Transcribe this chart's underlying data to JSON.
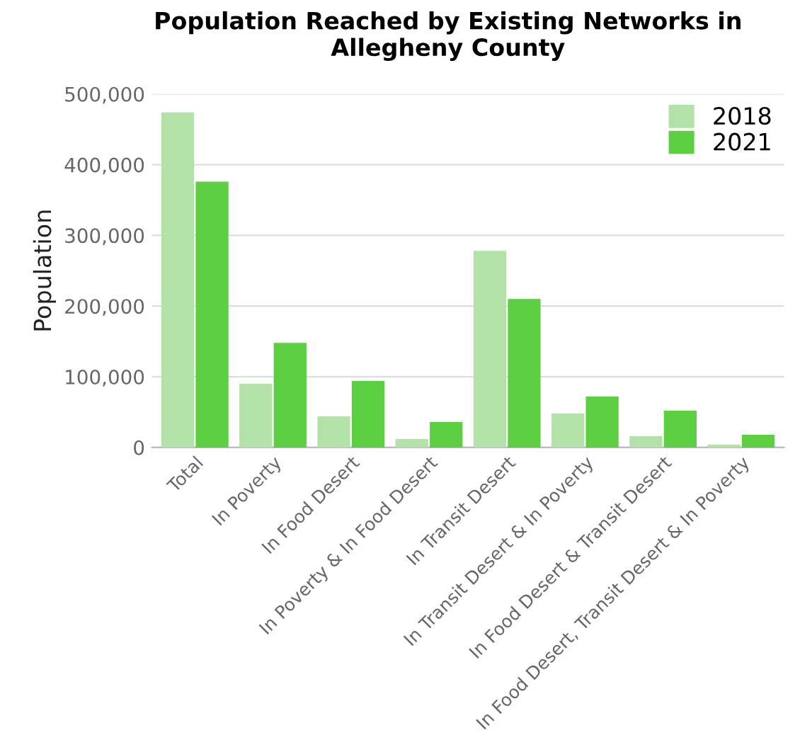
{
  "chart_data": {
    "type": "bar",
    "title": "Population Reached by Existing Networks in Allegheny County",
    "ylabel": "Population",
    "categories": [
      "Total",
      "In Poverty",
      "In Food Desert",
      "In Poverty & In Food Desert",
      "In Transit Desert",
      "In Transit Desert & In Poverty",
      "In Food Desert & Transit Desert",
      "In Food Desert, Transit Desert & In Poverty"
    ],
    "series": [
      {
        "name": "2018",
        "color": "#b3e2a9",
        "values": [
          474000,
          90000,
          44000,
          12000,
          278000,
          48000,
          16000,
          4000
        ]
      },
      {
        "name": "2021",
        "color": "#5ccf43",
        "values": [
          376000,
          148000,
          94000,
          36000,
          210000,
          72000,
          52000,
          18000
        ]
      }
    ],
    "ylim": [
      0,
      500000
    ],
    "yticks": [
      {
        "value": 0,
        "label": "0"
      },
      {
        "value": 100000,
        "label": "100,000"
      },
      {
        "value": 200000,
        "label": "200,000"
      },
      {
        "value": 300000,
        "label": "300,000"
      },
      {
        "value": 400000,
        "label": "400,000"
      },
      {
        "value": 500000,
        "label": "500,000"
      }
    ],
    "grid": "y",
    "legend": "top right"
  }
}
